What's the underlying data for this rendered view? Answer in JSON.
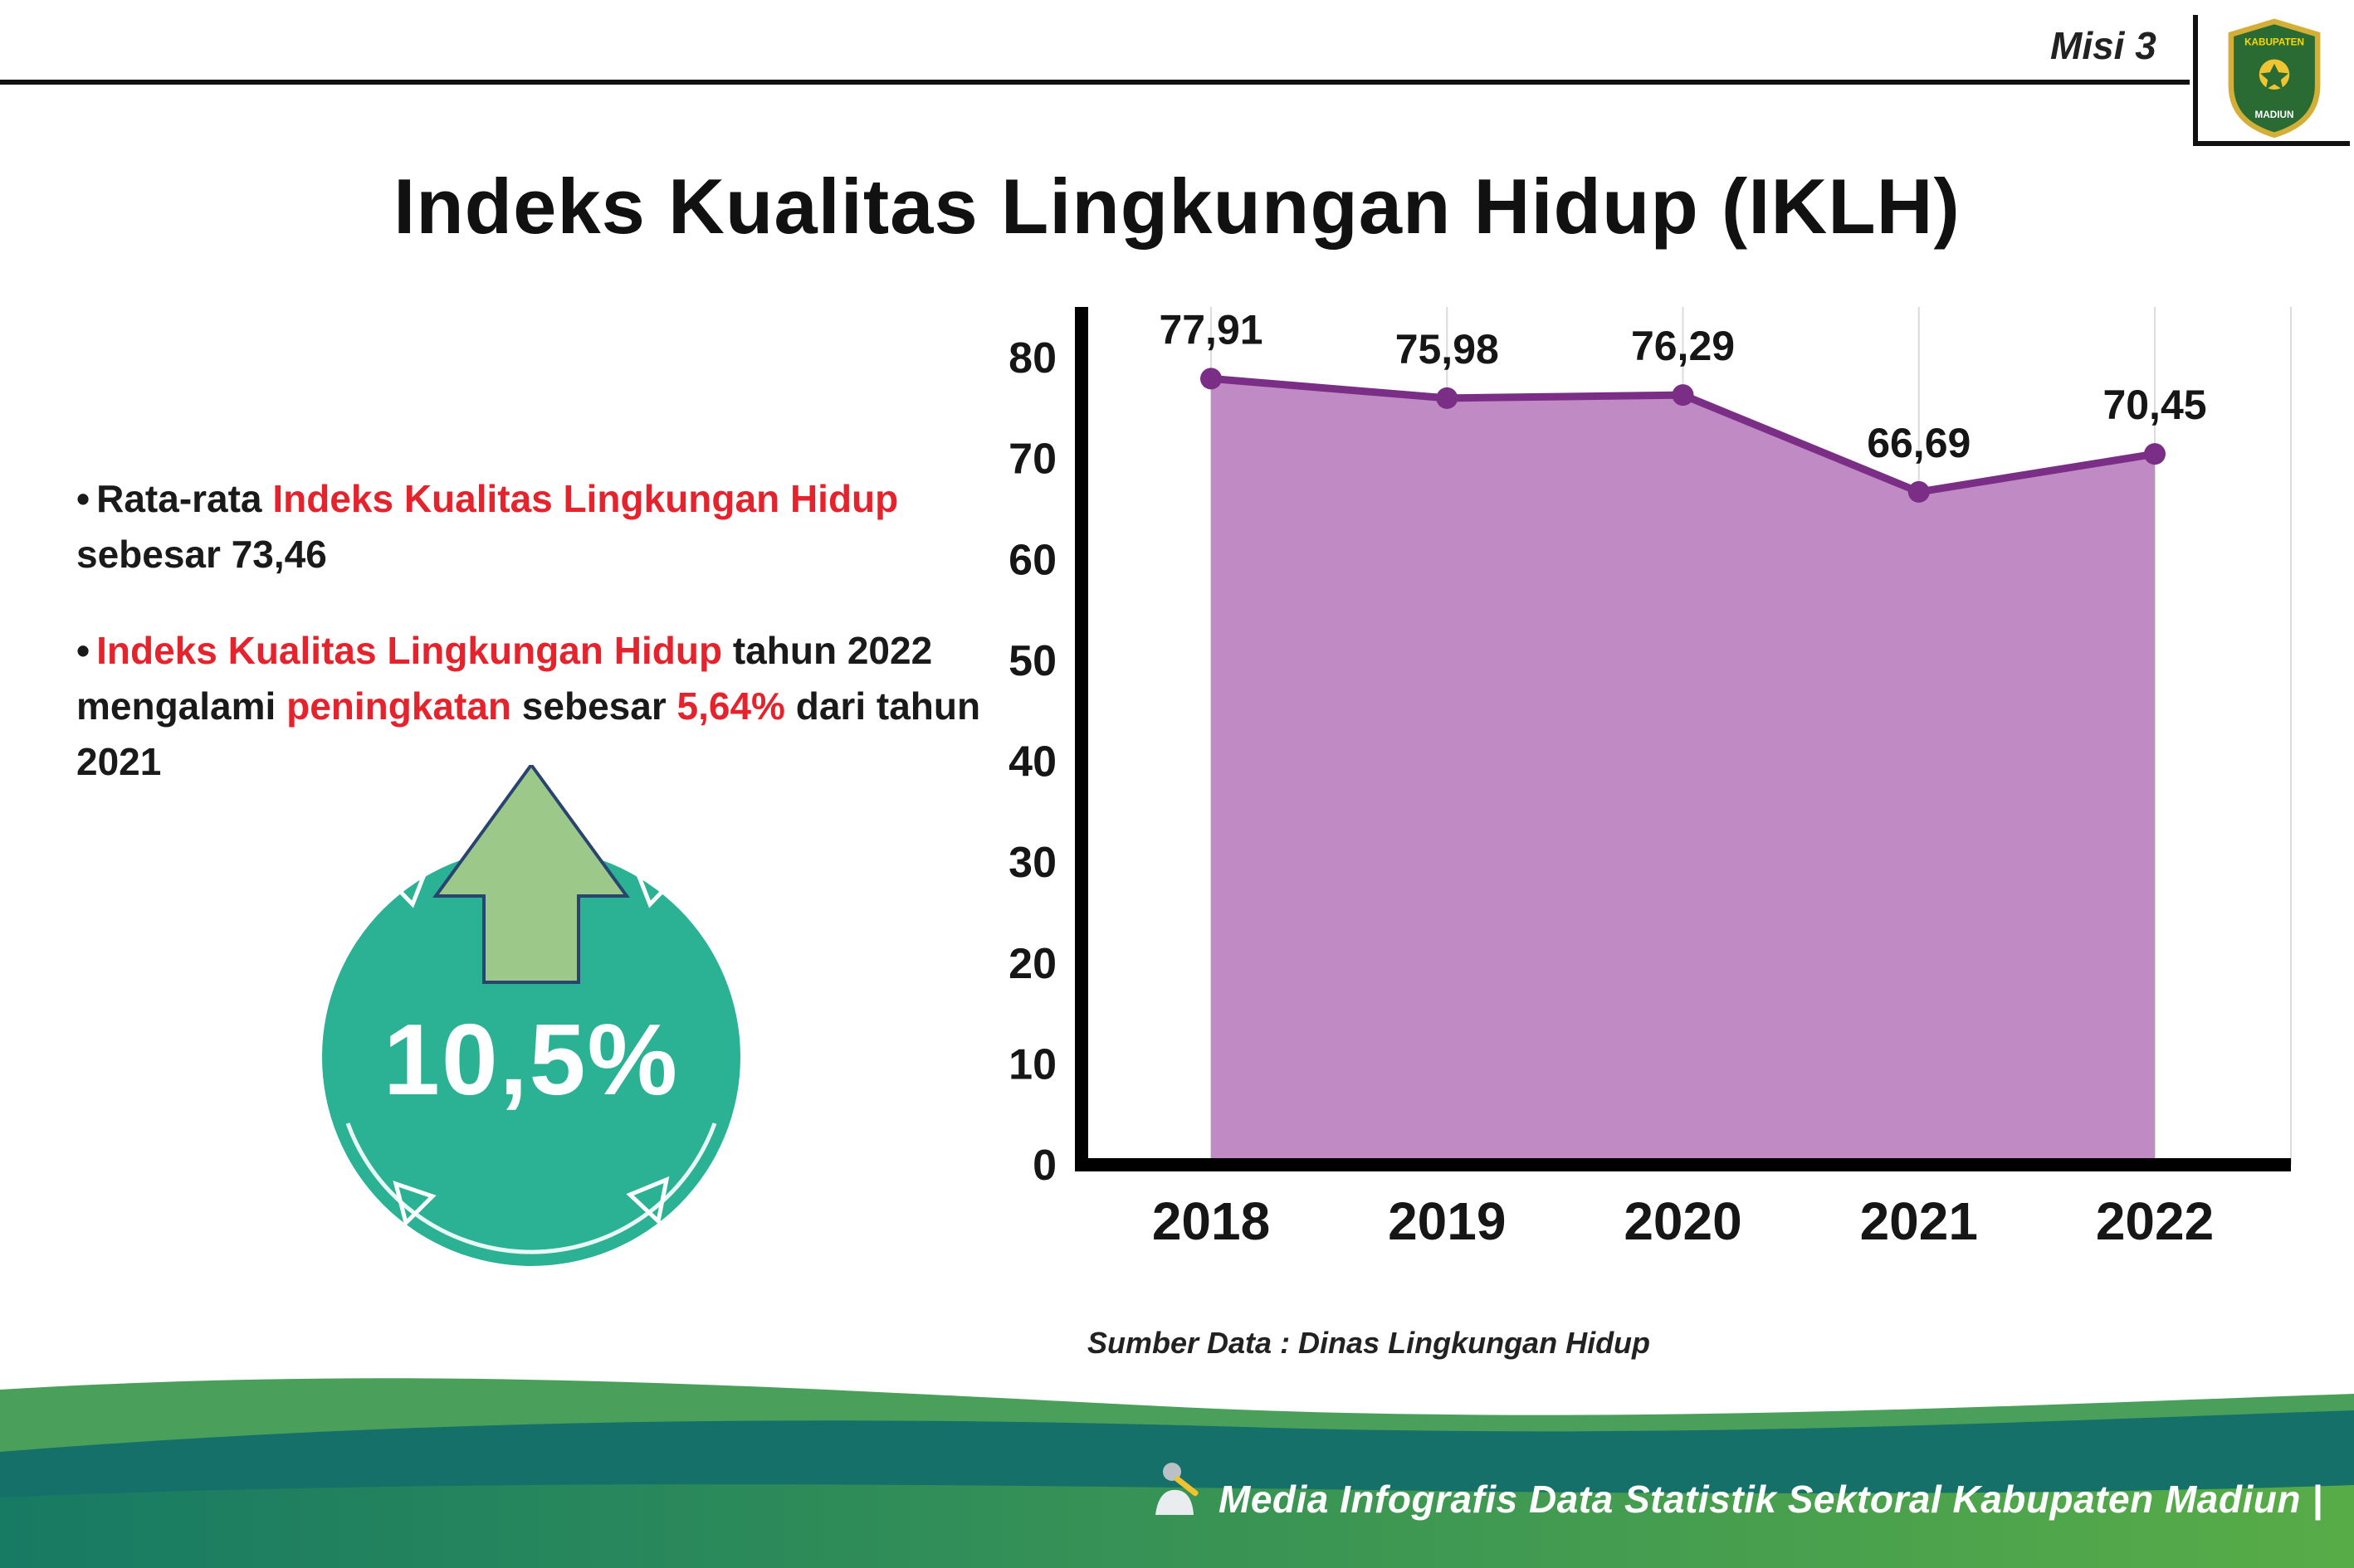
{
  "header": {
    "misi_label": "Misi 3",
    "title": "Indeks Kualitas Lingkungan Hidup (IKLH)",
    "logo": {
      "top_text": "KABUPATEN",
      "bottom_text": "MADIUN"
    }
  },
  "bullets": [
    {
      "parts": [
        "Rata-rata ",
        "Indeks Kualitas Lingkungan Hidup",
        " sebesar 73,46"
      ]
    },
    {
      "parts": [
        "Indeks Kualitas Lingkungan Hidup",
        " tahun 2022 mengalami ",
        "peningkatan",
        " sebesar ",
        "5,64%",
        " dari tahun 2021"
      ]
    }
  ],
  "badge": {
    "value": "10,5%"
  },
  "chart_data": {
    "type": "area",
    "categories": [
      "2018",
      "2019",
      "2020",
      "2021",
      "2022"
    ],
    "values": [
      77.91,
      75.98,
      76.29,
      66.69,
      70.45
    ],
    "value_labels": [
      "77,91",
      "75,98",
      "76,29",
      "66,69",
      "70,45"
    ],
    "ylim": [
      0,
      80
    ],
    "yticks": [
      0,
      10,
      20,
      30,
      40,
      50,
      60,
      70,
      80
    ],
    "grid": "vertical-light",
    "legend": "none",
    "title": "",
    "xlabel": "",
    "ylabel": "",
    "source": "Sumber Data : Dinas Lingkungan Hidup",
    "colors": {
      "area_fill": "#c08ac4",
      "line": "#7b2e85",
      "point": "#7b2e85"
    }
  },
  "footer": {
    "credit": "Media Infografis Data Statistik Sektoral Kabupaten Madiun |"
  }
}
